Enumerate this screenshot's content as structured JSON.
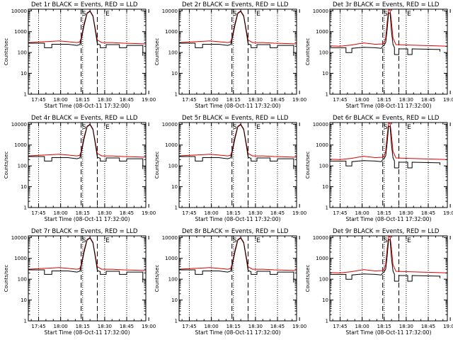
{
  "figure": {
    "title_suffix": "BLACK = Events, RED = LLD",
    "xlabel": "Start Time (08-Oct-11 17:32:00)",
    "ylabel": "Counts/sec",
    "marker_s": "S",
    "marker_e": "E",
    "colors": {
      "events": "#000000",
      "lld": "#e00000",
      "axis": "#000000"
    }
  },
  "chart_data": [
    {
      "type": "line",
      "title": "Det 1r BLACK = Events, RED = LLD",
      "xlabel": "Start Time (08-Oct-11 17:32:00)",
      "ylabel": "Counts/sec",
      "x_ticks": [
        "17:45",
        "18:00",
        "18:15",
        "18:30",
        "18:45",
        "19:00"
      ],
      "y_ticks": [
        "1",
        "10",
        "100",
        "1000",
        "10000"
      ],
      "y_scale": "log",
      "ylim": [
        1,
        12000
      ],
      "xlim_minutes": [
        -7,
        73
      ],
      "dotted_lines_minutes": [
        0,
        15,
        30,
        45,
        60,
        75
      ],
      "dashed_lines_minutes": [
        29,
        40
      ],
      "markers": [
        {
          "label": "S",
          "x_minutes": 31
        },
        {
          "label": "E",
          "x_minutes": 47
        }
      ],
      "series": [
        {
          "name": "Events",
          "profile": "detector_r"
        },
        {
          "name": "LLD",
          "profile": "detector_r"
        }
      ]
    },
    {
      "type": "line",
      "title": "Det 2r BLACK = Events, RED = LLD",
      "xlabel": "Start Time (08-Oct-11 17:32:00)",
      "ylabel": "Counts/sec",
      "x_ticks": [
        "17:45",
        "18:00",
        "18:15",
        "18:30",
        "18:45",
        "19:00"
      ],
      "y_ticks": [
        "1",
        "10",
        "100",
        "1000",
        "10000"
      ],
      "y_scale": "log",
      "ylim": [
        1,
        12000
      ],
      "xlim_minutes": [
        -7,
        73
      ],
      "dotted_lines_minutes": [
        0,
        15,
        30,
        45,
        60,
        75
      ],
      "dashed_lines_minutes": [
        29,
        40
      ],
      "markers": [
        {
          "label": "S",
          "x_minutes": 31
        },
        {
          "label": "E",
          "x_minutes": 47
        }
      ],
      "series": [
        {
          "name": "Events",
          "profile": "detector_r"
        },
        {
          "name": "LLD",
          "profile": "detector_r"
        }
      ]
    },
    {
      "type": "line",
      "title": "Det 3r BLACK = Events, RED = LLD",
      "xlabel": "Start Time (08-Oct-11 17:32:00)",
      "ylabel": "Counts/sec",
      "x_ticks": [
        "17:45",
        "18:00",
        "18:15",
        "18:30",
        "18:45",
        "19:00"
      ],
      "y_ticks": [
        "1",
        "10",
        "100",
        "1000",
        "10000"
      ],
      "y_scale": "log",
      "ylim": [
        1,
        12000
      ],
      "xlim_minutes": [
        -7,
        73
      ],
      "dotted_lines_minutes": [
        0,
        15,
        30,
        45,
        60,
        75
      ],
      "dashed_lines_minutes": [
        29,
        40
      ],
      "markers": [
        {
          "label": "S",
          "x_minutes": 31
        },
        {
          "label": "E",
          "x_minutes": 47
        }
      ],
      "series": [
        {
          "name": "Events",
          "profile": "detector_3"
        },
        {
          "name": "LLD",
          "profile": "detector_3"
        }
      ]
    },
    {
      "type": "line",
      "title": "Det 4r BLACK = Events, RED = LLD",
      "xlabel": "Start Time (08-Oct-11 17:32:00)",
      "ylabel": "Counts/sec",
      "x_ticks": [
        "17:45",
        "18:00",
        "18:15",
        "18:30",
        "18:45",
        "19:00"
      ],
      "y_ticks": [
        "1",
        "10",
        "100",
        "1000",
        "10000"
      ],
      "y_scale": "log",
      "ylim": [
        1,
        12000
      ],
      "xlim_minutes": [
        -7,
        73
      ],
      "dotted_lines_minutes": [
        0,
        15,
        30,
        45,
        60,
        75
      ],
      "dashed_lines_minutes": [
        29,
        40
      ],
      "markers": [
        {
          "label": "S",
          "x_minutes": 31
        },
        {
          "label": "E",
          "x_minutes": 47
        }
      ],
      "series": [
        {
          "name": "Events",
          "profile": "detector_r"
        },
        {
          "name": "LLD",
          "profile": "detector_r"
        }
      ]
    },
    {
      "type": "line",
      "title": "Det 5r BLACK = Events, RED = LLD",
      "xlabel": "Start Time (08-Oct-11 17:32:00)",
      "ylabel": "Counts/sec",
      "x_ticks": [
        "17:45",
        "18:00",
        "18:15",
        "18:30",
        "18:45",
        "19:00"
      ],
      "y_ticks": [
        "1",
        "10",
        "100",
        "1000",
        "10000"
      ],
      "y_scale": "log",
      "ylim": [
        1,
        12000
      ],
      "xlim_minutes": [
        -7,
        73
      ],
      "dotted_lines_minutes": [
        0,
        15,
        30,
        45,
        60,
        75
      ],
      "dashed_lines_minutes": [
        29,
        40
      ],
      "markers": [
        {
          "label": "S",
          "x_minutes": 31
        },
        {
          "label": "E",
          "x_minutes": 47
        }
      ],
      "series": [
        {
          "name": "Events",
          "profile": "detector_r"
        },
        {
          "name": "LLD",
          "profile": "detector_r"
        }
      ]
    },
    {
      "type": "line",
      "title": "Det 6r BLACK = Events, RED = LLD",
      "xlabel": "Start Time (08-Oct-11 17:32:00)",
      "ylabel": "Counts/sec",
      "x_ticks": [
        "17:45",
        "18:00",
        "18:15",
        "18:30",
        "18:45",
        "19:00"
      ],
      "y_ticks": [
        "1",
        "10",
        "100",
        "1000",
        "10000"
      ],
      "y_scale": "log",
      "ylim": [
        1,
        12000
      ],
      "xlim_minutes": [
        -7,
        73
      ],
      "dotted_lines_minutes": [
        0,
        15,
        30,
        45,
        60,
        75
      ],
      "dashed_lines_minutes": [
        29,
        40
      ],
      "markers": [
        {
          "label": "S",
          "x_minutes": 31
        },
        {
          "label": "E",
          "x_minutes": 47
        }
      ],
      "series": [
        {
          "name": "Events",
          "profile": "detector_3"
        },
        {
          "name": "LLD",
          "profile": "detector_3"
        }
      ]
    },
    {
      "type": "line",
      "title": "Det 7r BLACK = Events, RED = LLD",
      "xlabel": "Start Time (08-Oct-11 17:32:00)",
      "ylabel": "Counts/sec",
      "x_ticks": [
        "17:45",
        "18:00",
        "18:15",
        "18:30",
        "18:45",
        "19:00"
      ],
      "y_ticks": [
        "1",
        "10",
        "100",
        "1000",
        "10000"
      ],
      "y_scale": "log",
      "ylim": [
        1,
        12000
      ],
      "xlim_minutes": [
        -7,
        73
      ],
      "dotted_lines_minutes": [
        0,
        15,
        30,
        45,
        60,
        75
      ],
      "dashed_lines_minutes": [
        29,
        40
      ],
      "markers": [
        {
          "label": "S",
          "x_minutes": 31
        },
        {
          "label": "E",
          "x_minutes": 47
        }
      ],
      "series": [
        {
          "name": "Events",
          "profile": "detector_r"
        },
        {
          "name": "LLD",
          "profile": "detector_r"
        }
      ]
    },
    {
      "type": "line",
      "title": "Det 8r BLACK = Events, RED = LLD",
      "xlabel": "Start Time (08-Oct-11 17:32:00)",
      "ylabel": "Counts/sec",
      "x_ticks": [
        "17:45",
        "18:00",
        "18:15",
        "18:30",
        "18:45",
        "19:00"
      ],
      "y_ticks": [
        "1",
        "10",
        "100",
        "1000",
        "10000"
      ],
      "y_scale": "log",
      "ylim": [
        1,
        12000
      ],
      "xlim_minutes": [
        -7,
        73
      ],
      "dotted_lines_minutes": [
        0,
        15,
        30,
        45,
        60,
        75
      ],
      "dashed_lines_minutes": [
        29,
        40
      ],
      "markers": [
        {
          "label": "S",
          "x_minutes": 31
        },
        {
          "label": "E",
          "x_minutes": 47
        }
      ],
      "series": [
        {
          "name": "Events",
          "profile": "detector_r"
        },
        {
          "name": "LLD",
          "profile": "detector_r"
        }
      ]
    },
    {
      "type": "line",
      "title": "Det 9r BLACK = Events, RED = LLD",
      "xlabel": "Start Time (08-Oct-11 17:32:00)",
      "ylabel": "Counts/sec",
      "x_ticks": [
        "17:45",
        "18:00",
        "18:15",
        "18:30",
        "18:45",
        "19:00"
      ],
      "y_ticks": [
        "1",
        "10",
        "100",
        "1000",
        "10000"
      ],
      "y_scale": "log",
      "ylim": [
        1,
        12000
      ],
      "xlim_minutes": [
        -7,
        73
      ],
      "dotted_lines_minutes": [
        0,
        15,
        30,
        45,
        60,
        75
      ],
      "dashed_lines_minutes": [
        29,
        40
      ],
      "markers": [
        {
          "label": "S",
          "x_minutes": 31
        },
        {
          "label": "E",
          "x_minutes": 47
        }
      ],
      "series": [
        {
          "name": "Events",
          "profile": "detector_3"
        },
        {
          "name": "LLD",
          "profile": "detector_3"
        }
      ]
    }
  ],
  "profiles": {
    "detector_r": {
      "lld": [
        [
          -7,
          300
        ],
        [
          0,
          320
        ],
        [
          8,
          340
        ],
        [
          14,
          360
        ],
        [
          20,
          330
        ],
        [
          26,
          300
        ],
        [
          28,
          320
        ],
        [
          29,
          500
        ],
        [
          31,
          2500
        ],
        [
          33,
          8000
        ],
        [
          35,
          10000
        ],
        [
          37,
          6000
        ],
        [
          39,
          1000
        ],
        [
          40,
          400
        ],
        [
          43,
          300
        ],
        [
          50,
          300
        ],
        [
          58,
          280
        ],
        [
          66,
          270
        ],
        [
          73,
          260
        ]
      ],
      "events": [
        [
          -7,
          280
        ],
        [
          4,
          280
        ],
        [
          4,
          170
        ],
        [
          9,
          170
        ],
        [
          9,
          250
        ],
        [
          20,
          250
        ],
        [
          26,
          220
        ],
        [
          28,
          240
        ],
        [
          29,
          400
        ],
        [
          31,
          2000
        ],
        [
          33,
          7500
        ],
        [
          35,
          9500
        ],
        [
          37,
          5500
        ],
        [
          39,
          800
        ],
        [
          40,
          260
        ],
        [
          42,
          230
        ],
        [
          42,
          170
        ],
        [
          46,
          170
        ],
        [
          46,
          240
        ],
        [
          55,
          240
        ],
        [
          55,
          170
        ],
        [
          60,
          170
        ],
        [
          60,
          220
        ],
        [
          71,
          220
        ],
        [
          71,
          70
        ]
      ]
    },
    "detector_3": {
      "lld": [
        [
          -7,
          210
        ],
        [
          0,
          200
        ],
        [
          8,
          230
        ],
        [
          16,
          290
        ],
        [
          24,
          250
        ],
        [
          29,
          260
        ],
        [
          30,
          300
        ],
        [
          31,
          500
        ],
        [
          32,
          2800
        ],
        [
          33,
          11000
        ],
        [
          34,
          11000
        ],
        [
          35,
          3000
        ],
        [
          36,
          500
        ],
        [
          38,
          240
        ],
        [
          45,
          230
        ],
        [
          55,
          220
        ],
        [
          66,
          210
        ],
        [
          73,
          200
        ]
      ],
      "events": [
        [
          -7,
          170
        ],
        [
          4,
          170
        ],
        [
          4,
          100
        ],
        [
          8,
          100
        ],
        [
          8,
          160
        ],
        [
          16,
          180
        ],
        [
          24,
          170
        ],
        [
          28,
          160
        ],
        [
          29,
          200
        ],
        [
          30,
          230
        ],
        [
          31,
          300
        ],
        [
          32,
          1200
        ],
        [
          33,
          8000
        ],
        [
          34,
          8000
        ],
        [
          35,
          1000
        ],
        [
          36,
          250
        ],
        [
          37,
          170
        ],
        [
          37,
          80
        ],
        [
          40,
          80
        ],
        [
          40,
          150
        ],
        [
          46,
          150
        ],
        [
          46,
          80
        ],
        [
          49,
          80
        ],
        [
          49,
          150
        ],
        [
          68,
          140
        ],
        [
          68,
          110
        ]
      ]
    }
  }
}
